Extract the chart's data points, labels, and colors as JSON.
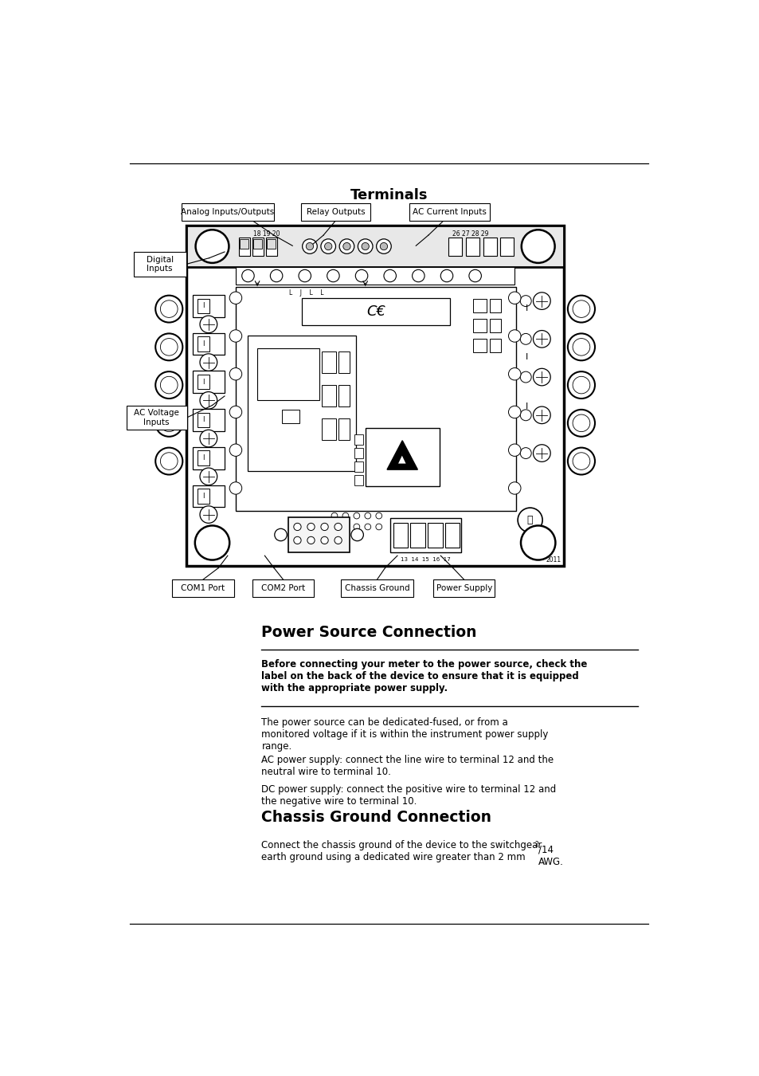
{
  "bg_color": "#ffffff",
  "page_width": 9.54,
  "page_height": 13.5,
  "section1_title": "Terminals",
  "section2_title": "Power Source Connection",
  "section3_title": "Chassis Ground Connection",
  "warning_text": "Before connecting your meter to the power source, check the\nlabel on the back of the device to ensure that it is equipped\nwith the appropriate power supply.",
  "para1": "The power source can be dedicated-fused, or from a\nmonitored voltage if it is within the instrument power supply\nrange.",
  "para2": "AC power supply: connect the line wire to terminal 12 and the\nneutral wire to terminal 10.",
  "para3": "DC power supply: connect the positive wire to terminal 12 and\nthe negative wire to terminal 10.",
  "para4_line1": "Connect the chassis ground of the device to the switchgear\nearth ground using a dedicated wire greater than 2 mm",
  "para4_sup": "2",
  "para4_line2": "/14\nAWG.",
  "label_analog": "Analog Inputs/Outputs",
  "label_relay": "Relay Outputs",
  "label_ac_current": "AC Current Inputs",
  "label_digital": "Digital\nInputs",
  "label_ac_voltage": "AC Voltage\nInputs",
  "label_com1": "COM1 Port",
  "label_com2": "COM2 Port",
  "label_chassis": "Chassis Ground",
  "label_power": "Power Supply",
  "diagram_num": "2011"
}
